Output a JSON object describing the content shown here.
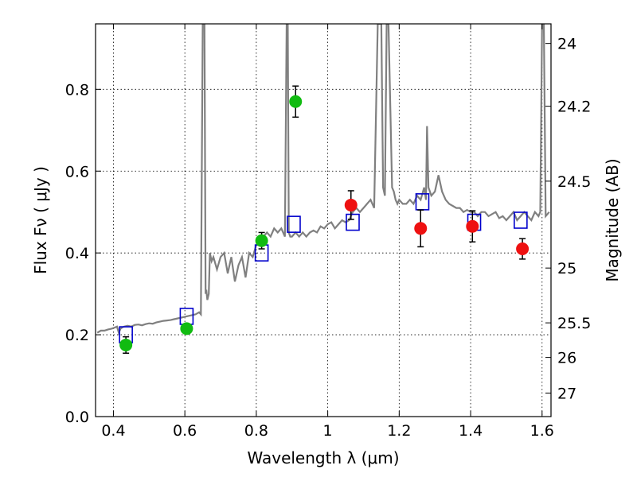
{
  "chart_data": {
    "type": "scatter",
    "title": "",
    "xlabel": "Wavelength  λ (μm)",
    "ylabel": "Flux  Fν  ( μJy )",
    "y2label": "Magnitude (AB)",
    "xlim": [
      0.35,
      1.625
    ],
    "ylim": [
      0.0,
      0.96
    ],
    "grid": true,
    "x_ticks": [
      {
        "v": 0.4,
        "label": "0.4"
      },
      {
        "v": 0.6,
        "label": "0.6"
      },
      {
        "v": 0.8,
        "label": "0.8"
      },
      {
        "v": 1.0,
        "label": "1"
      },
      {
        "v": 1.2,
        "label": "1.2"
      },
      {
        "v": 1.4,
        "label": "1.4"
      },
      {
        "v": 1.6,
        "label": "1.6"
      }
    ],
    "y_ticks": [
      {
        "v": 0.0,
        "label": "0.0"
      },
      {
        "v": 0.2,
        "label": "0.2"
      },
      {
        "v": 0.4,
        "label": "0.4"
      },
      {
        "v": 0.6,
        "label": "0.6"
      },
      {
        "v": 0.8,
        "label": "0.8"
      }
    ],
    "mag_ticks": [
      {
        "v": 24,
        "label": "24"
      },
      {
        "v": 24.2,
        "label": "24.2"
      },
      {
        "v": 24.5,
        "label": "24.5"
      },
      {
        "v": 25,
        "label": "25"
      },
      {
        "v": 25.5,
        "label": "25.5"
      },
      {
        "v": 26,
        "label": "26"
      },
      {
        "v": 27,
        "label": "27"
      }
    ],
    "colors": {
      "model": "#808080",
      "green": "#11bb11",
      "red": "#ee1111",
      "box": "#0000cc",
      "err": "#000000"
    },
    "series": [
      {
        "kind": "model_spectrum",
        "x": [
          0.355,
          0.365,
          0.375,
          0.385,
          0.395,
          0.405,
          0.41,
          0.415,
          0.42,
          0.425,
          0.43,
          0.44,
          0.45,
          0.46,
          0.47,
          0.48,
          0.49,
          0.5,
          0.51,
          0.52,
          0.53,
          0.54,
          0.55,
          0.56,
          0.57,
          0.58,
          0.59,
          0.6,
          0.61,
          0.62,
          0.63,
          0.64,
          0.645,
          0.65,
          0.655,
          0.658,
          0.66,
          0.663,
          0.667,
          0.67,
          0.675,
          0.68,
          0.69,
          0.7,
          0.71,
          0.72,
          0.73,
          0.74,
          0.75,
          0.76,
          0.77,
          0.78,
          0.79,
          0.8,
          0.81,
          0.82,
          0.83,
          0.84,
          0.85,
          0.86,
          0.87,
          0.88,
          0.885,
          0.888,
          0.891,
          0.895,
          0.9,
          0.91,
          0.92,
          0.93,
          0.94,
          0.95,
          0.96,
          0.97,
          0.98,
          0.99,
          1.0,
          1.01,
          1.02,
          1.03,
          1.04,
          1.05,
          1.06,
          1.07,
          1.08,
          1.09,
          1.1,
          1.11,
          1.12,
          1.13,
          1.14,
          1.15,
          1.155,
          1.16,
          1.165,
          1.17,
          1.18,
          1.185,
          1.19,
          1.195,
          1.2,
          1.21,
          1.22,
          1.23,
          1.24,
          1.25,
          1.26,
          1.27,
          1.275,
          1.278,
          1.282,
          1.29,
          1.3,
          1.31,
          1.32,
          1.33,
          1.34,
          1.35,
          1.36,
          1.37,
          1.38,
          1.39,
          1.4,
          1.41,
          1.42,
          1.43,
          1.44,
          1.45,
          1.46,
          1.47,
          1.48,
          1.49,
          1.5,
          1.51,
          1.52,
          1.53,
          1.54,
          1.55,
          1.56,
          1.57,
          1.58,
          1.59,
          1.595,
          1.6,
          1.605,
          1.61,
          1.62
        ],
        "y": [
          0.205,
          0.21,
          0.21,
          0.213,
          0.215,
          0.218,
          0.22,
          0.205,
          0.215,
          0.218,
          0.22,
          0.222,
          0.22,
          0.224,
          0.225,
          0.223,
          0.226,
          0.228,
          0.227,
          0.23,
          0.232,
          0.234,
          0.235,
          0.236,
          0.238,
          0.24,
          0.242,
          0.244,
          0.246,
          0.248,
          0.25,
          0.255,
          0.25,
          0.96,
          0.96,
          0.3,
          0.31,
          0.285,
          0.3,
          0.4,
          0.38,
          0.39,
          0.36,
          0.39,
          0.4,
          0.35,
          0.39,
          0.33,
          0.37,
          0.39,
          0.34,
          0.4,
          0.39,
          0.42,
          0.43,
          0.44,
          0.45,
          0.44,
          0.46,
          0.45,
          0.46,
          0.44,
          0.96,
          0.96,
          0.45,
          0.44,
          0.44,
          0.45,
          0.44,
          0.45,
          0.44,
          0.45,
          0.455,
          0.45,
          0.465,
          0.46,
          0.47,
          0.475,
          0.46,
          0.47,
          0.48,
          0.475,
          0.48,
          0.5,
          0.51,
          0.5,
          0.51,
          0.52,
          0.53,
          0.51,
          0.96,
          0.96,
          0.56,
          0.54,
          0.96,
          0.96,
          0.56,
          0.55,
          0.53,
          0.52,
          0.53,
          0.52,
          0.52,
          0.53,
          0.52,
          0.54,
          0.53,
          0.56,
          0.53,
          0.71,
          0.56,
          0.54,
          0.55,
          0.59,
          0.55,
          0.53,
          0.52,
          0.515,
          0.51,
          0.51,
          0.5,
          0.505,
          0.5,
          0.5,
          0.49,
          0.5,
          0.5,
          0.49,
          0.495,
          0.5,
          0.485,
          0.49,
          0.48,
          0.49,
          0.5,
          0.48,
          0.49,
          0.5,
          0.49,
          0.48,
          0.5,
          0.49,
          0.5,
          0.96,
          0.96,
          0.49,
          0.5
        ]
      },
      {
        "kind": "points_green",
        "points": [
          {
            "x": 0.435,
            "y": 0.175,
            "err": 0.02
          },
          {
            "x": 0.605,
            "y": 0.215,
            "err": 0.012
          },
          {
            "x": 0.815,
            "y": 0.43,
            "err": 0.02
          },
          {
            "x": 0.91,
            "y": 0.77,
            "err": 0.038
          }
        ]
      },
      {
        "kind": "points_red",
        "points": [
          {
            "x": 1.065,
            "y": 0.517,
            "err": 0.035
          },
          {
            "x": 1.26,
            "y": 0.46,
            "err": 0.045
          },
          {
            "x": 1.405,
            "y": 0.465,
            "err": 0.038
          },
          {
            "x": 1.545,
            "y": 0.41,
            "err": 0.025
          }
        ]
      },
      {
        "kind": "model_boxes",
        "points": [
          {
            "x": 0.435,
            "y": 0.2
          },
          {
            "x": 0.605,
            "y": 0.245
          },
          {
            "x": 0.815,
            "y": 0.4
          },
          {
            "x": 0.905,
            "y": 0.47
          },
          {
            "x": 1.07,
            "y": 0.475
          },
          {
            "x": 1.265,
            "y": 0.525
          },
          {
            "x": 1.41,
            "y": 0.475
          },
          {
            "x": 1.54,
            "y": 0.48
          }
        ]
      }
    ]
  }
}
